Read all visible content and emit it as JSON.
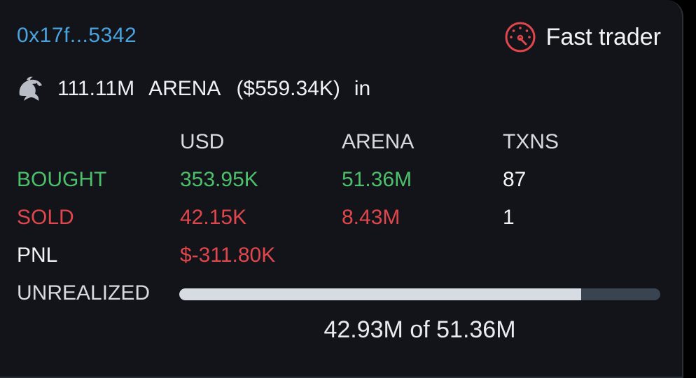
{
  "wallet": {
    "address": "0x17f...5342"
  },
  "badge": {
    "label": "Fast trader",
    "icon": "speedometer-icon",
    "color": "#e0474c"
  },
  "holding": {
    "icon": "dolphin-icon",
    "amount": "111.11M",
    "token": "ARENA",
    "value": "($559.34K)",
    "suffix": "in"
  },
  "table": {
    "headers": [
      "USD",
      "ARENA",
      "TXNS"
    ],
    "rows": [
      {
        "label": "BOUGHT",
        "usd": "353.95K",
        "arena": "51.36M",
        "txns": "87"
      },
      {
        "label": "SOLD",
        "usd": "42.15K",
        "arena": "8.43M",
        "txns": "1"
      }
    ],
    "pnl": {
      "label": "PNL",
      "value": "$-311.80K"
    },
    "unrealized": {
      "label": "UNREALIZED",
      "caption": "42.93M of 51.36M",
      "fraction": 0.836
    }
  },
  "colors": {
    "green": "#4cbf6b",
    "red": "#e0474c",
    "link": "#4aa3df"
  }
}
